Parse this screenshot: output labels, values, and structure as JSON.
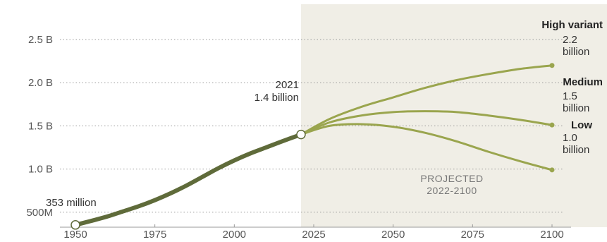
{
  "chart_data": {
    "type": "line",
    "x_ticks": [
      "1950",
      "1975",
      "2000",
      "2025",
      "2050",
      "2075",
      "2100"
    ],
    "y_ticks": [
      "500M",
      "1.0 B",
      "1.5 B",
      "2.0 B",
      "2.5 B"
    ],
    "xlim": [
      1950,
      2100
    ],
    "ylim": [
      0.353,
      2.5
    ],
    "grid": "horizontal dotted",
    "historical": {
      "x": [
        1950,
        1955,
        1960,
        1965,
        1970,
        1975,
        1980,
        1985,
        1990,
        1995,
        2000,
        2005,
        2010,
        2015,
        2021
      ],
      "y": [
        0.353,
        0.4,
        0.45,
        0.51,
        0.57,
        0.64,
        0.72,
        0.81,
        0.91,
        1.01,
        1.1,
        1.18,
        1.25,
        1.32,
        1.4
      ],
      "start_label": "353 million",
      "end_year_label": "2021",
      "end_value_label": "1.4 billion"
    },
    "projection_band": {
      "from": 2021,
      "to": 2100,
      "label_line1": "PROJECTED",
      "label_line2": "2022-2100"
    },
    "series": [
      {
        "name": "High variant",
        "end_value": "2.2",
        "end_unit": "billion",
        "x": [
          2021,
          2030,
          2040,
          2050,
          2060,
          2070,
          2080,
          2090,
          2100
        ],
        "y": [
          1.4,
          1.58,
          1.72,
          1.83,
          1.94,
          2.03,
          2.1,
          2.16,
          2.2
        ]
      },
      {
        "name": "Medium",
        "end_value": "1.5",
        "end_unit": "billion",
        "x": [
          2021,
          2030,
          2040,
          2050,
          2060,
          2070,
          2080,
          2090,
          2100
        ],
        "y": [
          1.4,
          1.54,
          1.62,
          1.66,
          1.67,
          1.66,
          1.62,
          1.57,
          1.51
        ]
      },
      {
        "name": "Low",
        "end_value": "1.0",
        "end_unit": "billion",
        "x": [
          2021,
          2030,
          2040,
          2050,
          2060,
          2070,
          2080,
          2090,
          2100
        ],
        "y": [
          1.4,
          1.5,
          1.52,
          1.49,
          1.42,
          1.32,
          1.2,
          1.09,
          0.99
        ]
      }
    ],
    "colors": {
      "historical": "#5f6b3a",
      "projection": "#9aa54e",
      "band": "#f0eee6",
      "grid": "#999999"
    }
  }
}
